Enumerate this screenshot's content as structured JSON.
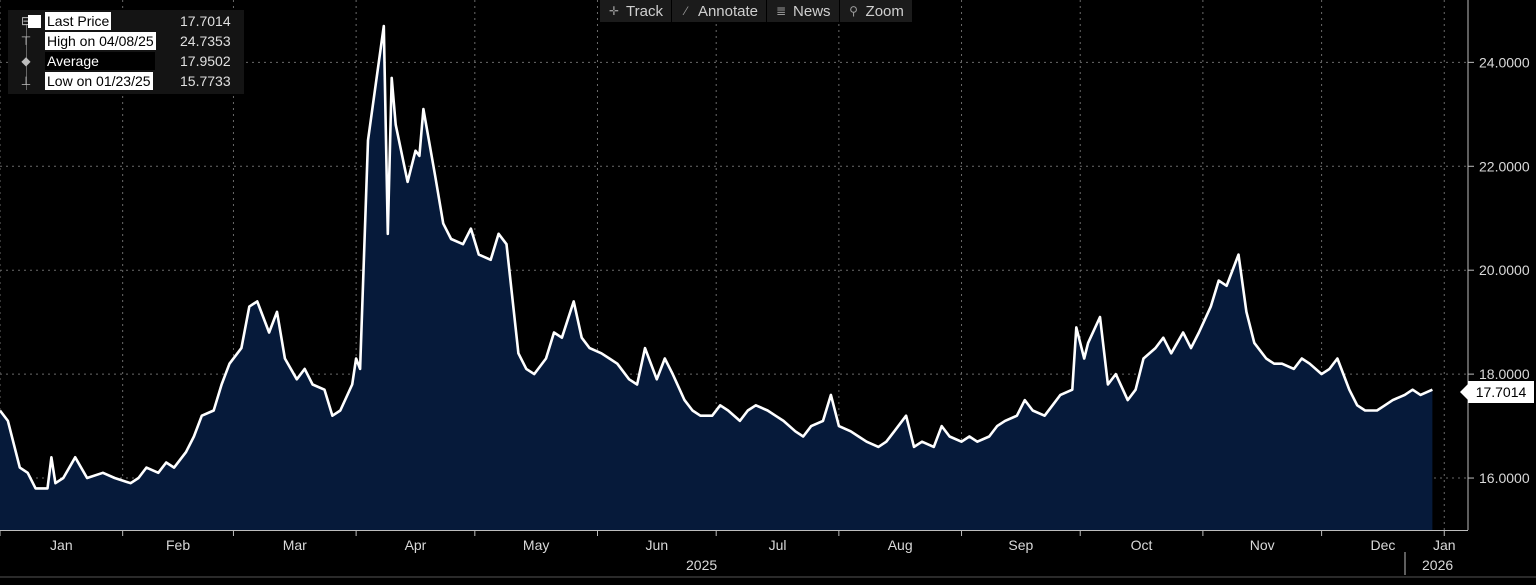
{
  "toolbar": {
    "track": {
      "label": "Track",
      "icon": "crosshair-icon"
    },
    "annotate": {
      "label": "Annotate",
      "icon": "pencil-icon"
    },
    "news": {
      "label": "News",
      "icon": "news-icon"
    },
    "zoom": {
      "label": "Zoom",
      "icon": "magnifier-icon"
    }
  },
  "legend": {
    "last": {
      "label": "Last Price",
      "value": "17.7014"
    },
    "high": {
      "label": "High on 04/08/25",
      "value": "24.7353"
    },
    "average": {
      "label": "Average",
      "value": "17.9502"
    },
    "low": {
      "label": "Low on 01/23/25",
      "value": "15.7733"
    }
  },
  "colors": {
    "background": "#000000",
    "fill": "#061a3a",
    "line": "#ffffff",
    "grid": "#6a6a6a"
  },
  "chart_data": {
    "type": "area",
    "title": "",
    "xlabel": "",
    "ylabel": "",
    "ylim": [
      15.0,
      25.2
    ],
    "x_range": [
      "2025-01-01",
      "2026-01-07"
    ],
    "grid": true,
    "legend_position": "top-left",
    "y_ticks": [
      "16.0000",
      "18.0000",
      "20.0000",
      "22.0000",
      "24.0000"
    ],
    "y_tick_values": [
      16,
      18,
      20,
      22,
      24
    ],
    "x_ticks": [
      "Jan",
      "Feb",
      "Mar",
      "Apr",
      "May",
      "Jun",
      "Jul",
      "Aug",
      "Sep",
      "Oct",
      "Nov",
      "Dec",
      "Jan"
    ],
    "x_tick_dates": [
      "2025-01-01",
      "2025-02-01",
      "2025-03-01",
      "2025-04-01",
      "2025-05-01",
      "2025-06-01",
      "2025-07-01",
      "2025-08-01",
      "2025-09-01",
      "2025-10-01",
      "2025-11-01",
      "2025-12-01",
      "2026-01-01"
    ],
    "year_labels": [
      "2025",
      "2026"
    ],
    "last_value_label": "17.7014",
    "series": [
      {
        "values": [
          [
            "2025-01-01",
            17.3
          ],
          [
            "2025-01-03",
            17.1
          ],
          [
            "2025-01-06",
            16.2
          ],
          [
            "2025-01-08",
            16.1
          ],
          [
            "2025-01-10",
            15.8
          ],
          [
            "2025-01-13",
            15.8
          ],
          [
            "2025-01-14",
            16.4
          ],
          [
            "2025-01-15",
            15.9
          ],
          [
            "2025-01-17",
            16.0
          ],
          [
            "2025-01-20",
            16.4
          ],
          [
            "2025-01-23",
            16.0
          ],
          [
            "2025-01-27",
            16.1
          ],
          [
            "2025-01-30",
            16.0
          ],
          [
            "2025-02-03",
            15.9
          ],
          [
            "2025-02-05",
            16.0
          ],
          [
            "2025-02-07",
            16.2
          ],
          [
            "2025-02-10",
            16.1
          ],
          [
            "2025-02-12",
            16.3
          ],
          [
            "2025-02-14",
            16.2
          ],
          [
            "2025-02-17",
            16.5
          ],
          [
            "2025-02-19",
            16.8
          ],
          [
            "2025-02-21",
            17.2
          ],
          [
            "2025-02-24",
            17.3
          ],
          [
            "2025-02-26",
            17.8
          ],
          [
            "2025-02-28",
            18.2
          ],
          [
            "2025-03-03",
            18.5
          ],
          [
            "2025-03-05",
            19.3
          ],
          [
            "2025-03-07",
            19.4
          ],
          [
            "2025-03-10",
            18.8
          ],
          [
            "2025-03-12",
            19.2
          ],
          [
            "2025-03-14",
            18.3
          ],
          [
            "2025-03-17",
            17.9
          ],
          [
            "2025-03-19",
            18.1
          ],
          [
            "2025-03-21",
            17.8
          ],
          [
            "2025-03-24",
            17.7
          ],
          [
            "2025-03-26",
            17.2
          ],
          [
            "2025-03-28",
            17.3
          ],
          [
            "2025-03-31",
            17.8
          ],
          [
            "2025-04-01",
            18.3
          ],
          [
            "2025-04-02",
            18.1
          ],
          [
            "2025-04-04",
            22.5
          ],
          [
            "2025-04-08",
            24.7
          ],
          [
            "2025-04-09",
            20.7
          ],
          [
            "2025-04-10",
            23.7
          ],
          [
            "2025-04-11",
            22.8
          ],
          [
            "2025-04-14",
            21.7
          ],
          [
            "2025-04-16",
            22.3
          ],
          [
            "2025-04-17",
            22.2
          ],
          [
            "2025-04-18",
            23.1
          ],
          [
            "2025-04-21",
            21.8
          ],
          [
            "2025-04-23",
            20.9
          ],
          [
            "2025-04-25",
            20.6
          ],
          [
            "2025-04-28",
            20.5
          ],
          [
            "2025-04-30",
            20.8
          ],
          [
            "2025-05-02",
            20.3
          ],
          [
            "2025-05-05",
            20.2
          ],
          [
            "2025-05-07",
            20.7
          ],
          [
            "2025-05-09",
            20.5
          ],
          [
            "2025-05-12",
            18.4
          ],
          [
            "2025-05-14",
            18.1
          ],
          [
            "2025-05-16",
            18.0
          ],
          [
            "2025-05-19",
            18.3
          ],
          [
            "2025-05-21",
            18.8
          ],
          [
            "2025-05-23",
            18.7
          ],
          [
            "2025-05-26",
            19.4
          ],
          [
            "2025-05-28",
            18.7
          ],
          [
            "2025-05-30",
            18.5
          ],
          [
            "2025-06-02",
            18.4
          ],
          [
            "2025-06-04",
            18.3
          ],
          [
            "2025-06-06",
            18.2
          ],
          [
            "2025-06-09",
            17.9
          ],
          [
            "2025-06-11",
            17.8
          ],
          [
            "2025-06-13",
            18.5
          ],
          [
            "2025-06-16",
            17.9
          ],
          [
            "2025-06-18",
            18.3
          ],
          [
            "2025-06-20",
            18.0
          ],
          [
            "2025-06-23",
            17.5
          ],
          [
            "2025-06-25",
            17.3
          ],
          [
            "2025-06-27",
            17.2
          ],
          [
            "2025-06-30",
            17.2
          ],
          [
            "2025-07-02",
            17.4
          ],
          [
            "2025-07-04",
            17.3
          ],
          [
            "2025-07-07",
            17.1
          ],
          [
            "2025-07-09",
            17.3
          ],
          [
            "2025-07-11",
            17.4
          ],
          [
            "2025-07-14",
            17.3
          ],
          [
            "2025-07-16",
            17.2
          ],
          [
            "2025-07-18",
            17.1
          ],
          [
            "2025-07-21",
            16.9
          ],
          [
            "2025-07-23",
            16.8
          ],
          [
            "2025-07-25",
            17.0
          ],
          [
            "2025-07-28",
            17.1
          ],
          [
            "2025-07-30",
            17.6
          ],
          [
            "2025-08-01",
            17.0
          ],
          [
            "2025-08-04",
            16.9
          ],
          [
            "2025-08-06",
            16.8
          ],
          [
            "2025-08-08",
            16.7
          ],
          [
            "2025-08-11",
            16.6
          ],
          [
            "2025-08-13",
            16.7
          ],
          [
            "2025-08-15",
            16.9
          ],
          [
            "2025-08-18",
            17.2
          ],
          [
            "2025-08-20",
            16.6
          ],
          [
            "2025-08-22",
            16.7
          ],
          [
            "2025-08-25",
            16.6
          ],
          [
            "2025-08-27",
            17.0
          ],
          [
            "2025-08-29",
            16.8
          ],
          [
            "2025-09-01",
            16.7
          ],
          [
            "2025-09-03",
            16.8
          ],
          [
            "2025-09-05",
            16.7
          ],
          [
            "2025-09-08",
            16.8
          ],
          [
            "2025-09-10",
            17.0
          ],
          [
            "2025-09-12",
            17.1
          ],
          [
            "2025-09-15",
            17.2
          ],
          [
            "2025-09-17",
            17.5
          ],
          [
            "2025-09-19",
            17.3
          ],
          [
            "2025-09-22",
            17.2
          ],
          [
            "2025-09-24",
            17.4
          ],
          [
            "2025-09-26",
            17.6
          ],
          [
            "2025-09-29",
            17.7
          ],
          [
            "2025-09-30",
            18.9
          ],
          [
            "2025-10-02",
            18.3
          ],
          [
            "2025-10-03",
            18.6
          ],
          [
            "2025-10-06",
            19.1
          ],
          [
            "2025-10-08",
            17.8
          ],
          [
            "2025-10-10",
            18.0
          ],
          [
            "2025-10-13",
            17.5
          ],
          [
            "2025-10-15",
            17.7
          ],
          [
            "2025-10-17",
            18.3
          ],
          [
            "2025-10-20",
            18.5
          ],
          [
            "2025-10-22",
            18.7
          ],
          [
            "2025-10-24",
            18.4
          ],
          [
            "2025-10-27",
            18.8
          ],
          [
            "2025-10-29",
            18.5
          ],
          [
            "2025-10-31",
            18.8
          ],
          [
            "2025-11-03",
            19.3
          ],
          [
            "2025-11-05",
            19.8
          ],
          [
            "2025-11-07",
            19.7
          ],
          [
            "2025-11-10",
            20.3
          ],
          [
            "2025-11-12",
            19.2
          ],
          [
            "2025-11-14",
            18.6
          ],
          [
            "2025-11-17",
            18.3
          ],
          [
            "2025-11-19",
            18.2
          ],
          [
            "2025-11-21",
            18.2
          ],
          [
            "2025-11-24",
            18.1
          ],
          [
            "2025-11-26",
            18.3
          ],
          [
            "2025-11-28",
            18.2
          ],
          [
            "2025-12-01",
            18.0
          ],
          [
            "2025-12-03",
            18.1
          ],
          [
            "2025-12-05",
            18.3
          ],
          [
            "2025-12-08",
            17.7
          ],
          [
            "2025-12-10",
            17.4
          ],
          [
            "2025-12-12",
            17.3
          ],
          [
            "2025-12-15",
            17.3
          ],
          [
            "2025-12-17",
            17.4
          ],
          [
            "2025-12-19",
            17.5
          ],
          [
            "2025-12-22",
            17.6
          ],
          [
            "2025-12-24",
            17.7
          ],
          [
            "2025-12-26",
            17.6
          ],
          [
            "2025-12-29",
            17.7
          ]
        ]
      }
    ]
  }
}
